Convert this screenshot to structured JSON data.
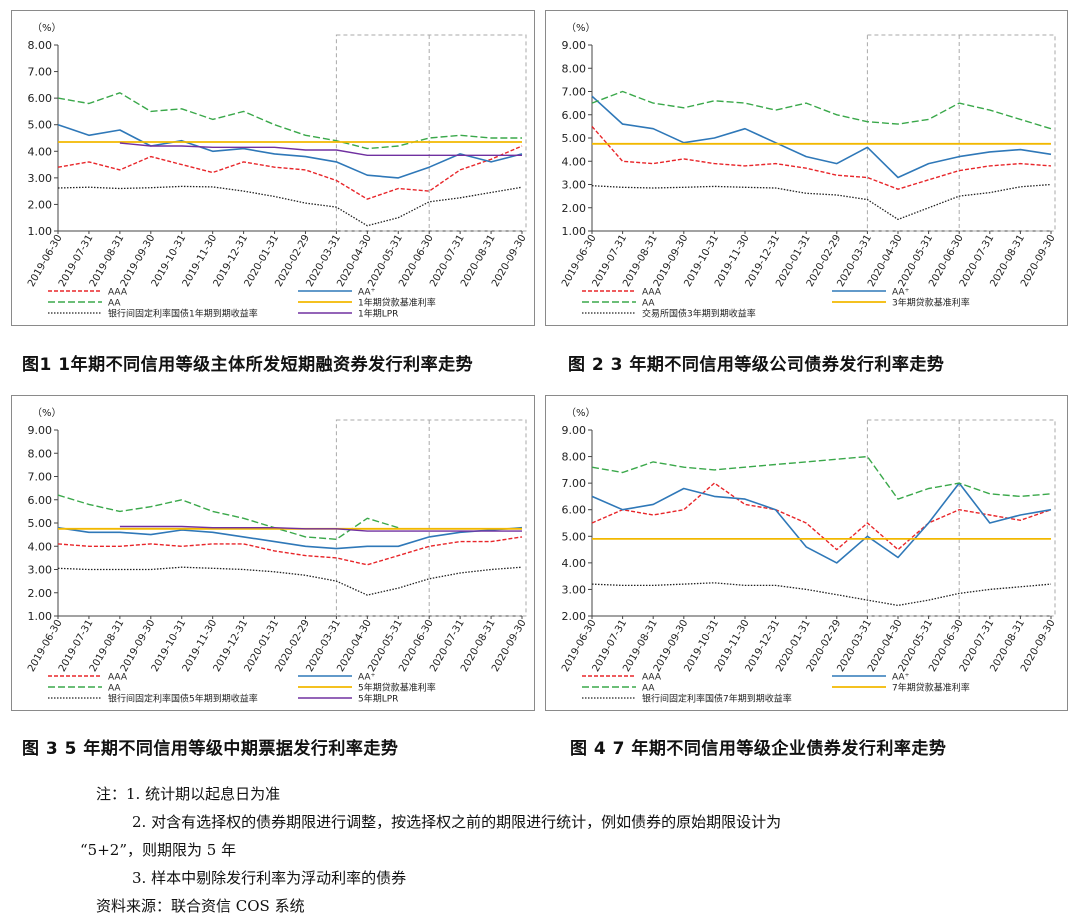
{
  "x_ticks": [
    "2019-06-30",
    "2019-07-31",
    "2019-08-31",
    "2019-09-30",
    "2019-10-31",
    "2019-11-30",
    "2019-12-31",
    "2020-01-31",
    "2020-02-29",
    "2020-03-31",
    "2020-04-30",
    "2020-05-31",
    "2020-06-30",
    "2020-07-31",
    "2020-08-31",
    "2020-09-30"
  ],
  "colors": {
    "aaa": "#e8262a",
    "aa_plus": "#2f78b8",
    "aa": "#3aa84a",
    "base": "#f2b800",
    "lpr": "#7030a0",
    "gov": "#222222"
  },
  "chart_data": [
    {
      "type": "line",
      "caption": "图1  1年期不同信用等级主体所发短期融资券发行利率走势",
      "unit": "（%）",
      "ylim": [
        1.0,
        8.0
      ],
      "y_ticks": [
        "8.00",
        "7.00",
        "6.00",
        "5.00",
        "4.00",
        "3.00",
        "2.00",
        "1.00"
      ],
      "grid": false,
      "legend": "bottom",
      "series": [
        {
          "name": "AAA",
          "values": [
            3.4,
            3.6,
            3.3,
            3.8,
            3.5,
            3.2,
            3.6,
            3.4,
            3.3,
            2.9,
            2.2,
            2.6,
            2.5,
            3.3,
            3.7,
            4.2
          ]
        },
        {
          "name": "AA⁺",
          "values": [
            5.0,
            4.6,
            4.8,
            4.2,
            4.4,
            4.0,
            4.1,
            3.9,
            3.8,
            3.6,
            3.1,
            3.0,
            3.4,
            3.9,
            3.6,
            3.9
          ]
        },
        {
          "name": "AA",
          "values": [
            6.0,
            5.8,
            6.2,
            5.5,
            5.6,
            5.2,
            5.5,
            5.0,
            4.6,
            4.4,
            4.1,
            4.2,
            4.5,
            4.6,
            4.5,
            4.5
          ]
        },
        {
          "name": "1年期贷款基准利率",
          "values": [
            4.35,
            4.35,
            4.35,
            4.35,
            4.35,
            4.35,
            4.35,
            4.35,
            4.35,
            4.35,
            4.35,
            4.35,
            4.35,
            4.35,
            4.35,
            4.35
          ]
        },
        {
          "name": "银行间固定利率国债1年期到期收益率",
          "values": [
            2.62,
            2.65,
            2.6,
            2.63,
            2.68,
            2.66,
            2.5,
            2.3,
            2.05,
            1.9,
            1.2,
            1.5,
            2.1,
            2.25,
            2.45,
            2.65
          ]
        },
        {
          "name": "1年期LPR",
          "values": [
            null,
            null,
            4.31,
            4.2,
            4.2,
            4.15,
            4.15,
            4.15,
            4.05,
            4.05,
            3.85,
            3.85,
            3.85,
            3.85,
            3.85,
            3.85
          ]
        }
      ]
    },
    {
      "type": "line",
      "caption": "图 2   3 年期不同信用等级公司债券发行利率走势",
      "unit": "（%）",
      "ylim": [
        1.0,
        9.0
      ],
      "y_ticks": [
        "9.00",
        "8.00",
        "7.00",
        "6.00",
        "5.00",
        "4.00",
        "3.00",
        "2.00",
        "1.00"
      ],
      "grid": false,
      "legend": "bottom",
      "series": [
        {
          "name": "AAA",
          "values": [
            5.5,
            4.0,
            3.9,
            4.1,
            3.9,
            3.8,
            3.9,
            3.7,
            3.4,
            3.3,
            2.8,
            3.2,
            3.6,
            3.8,
            3.9,
            3.8
          ]
        },
        {
          "name": "AA⁺",
          "values": [
            6.8,
            5.6,
            5.4,
            4.8,
            5.0,
            5.4,
            4.8,
            4.2,
            3.9,
            4.6,
            3.3,
            3.9,
            4.2,
            4.4,
            4.5,
            4.3
          ]
        },
        {
          "name": "AA",
          "values": [
            6.5,
            7.0,
            6.5,
            6.3,
            6.6,
            6.5,
            6.2,
            6.5,
            6.0,
            5.7,
            5.6,
            5.8,
            6.5,
            6.2,
            5.8,
            5.4
          ]
        },
        {
          "name": "3年期贷款基准利率",
          "values": [
            4.75,
            4.75,
            4.75,
            4.75,
            4.75,
            4.75,
            4.75,
            4.75,
            4.75,
            4.75,
            4.75,
            4.75,
            4.75,
            4.75,
            4.75,
            4.75
          ]
        },
        {
          "name": "交易所国债3年期到期收益率",
          "values": [
            2.95,
            2.88,
            2.85,
            2.88,
            2.92,
            2.88,
            2.85,
            2.62,
            2.55,
            2.35,
            1.5,
            2.0,
            2.5,
            2.65,
            2.9,
            3.0
          ]
        }
      ]
    },
    {
      "type": "line",
      "caption": "图 3   5 年期不同信用等级中期票据发行利率走势",
      "unit": "（%）",
      "ylim": [
        1.0,
        9.0
      ],
      "y_ticks": [
        "9.00",
        "8.00",
        "7.00",
        "6.00",
        "5.00",
        "4.00",
        "3.00",
        "2.00",
        "1.00"
      ],
      "grid": false,
      "legend": "bottom",
      "series": [
        {
          "name": "AAA",
          "values": [
            4.1,
            4.0,
            4.0,
            4.1,
            4.0,
            4.1,
            4.1,
            3.8,
            3.6,
            3.5,
            3.2,
            3.6,
            4.0,
            4.2,
            4.2,
            4.4
          ]
        },
        {
          "name": "AA⁺",
          "values": [
            4.8,
            4.6,
            4.6,
            4.5,
            4.7,
            4.6,
            4.4,
            4.2,
            4.0,
            3.9,
            4.0,
            4.0,
            4.4,
            4.6,
            4.7,
            4.8
          ]
        },
        {
          "name": "AA",
          "values": [
            6.2,
            5.8,
            5.5,
            5.7,
            6.0,
            5.5,
            5.2,
            4.8,
            4.4,
            4.3,
            5.2,
            4.8,
            null,
            null,
            null,
            null
          ]
        },
        {
          "name": "5年期贷款基准利率",
          "values": [
            4.75,
            4.75,
            4.75,
            4.75,
            4.75,
            4.75,
            4.75,
            4.75,
            4.75,
            4.75,
            4.75,
            4.75,
            4.75,
            4.75,
            4.75,
            4.75
          ]
        },
        {
          "name": "银行间固定利率国债5年期到期收益率",
          "values": [
            3.05,
            3.0,
            3.0,
            3.0,
            3.1,
            3.05,
            3.0,
            2.9,
            2.75,
            2.5,
            1.9,
            2.2,
            2.6,
            2.85,
            3.0,
            3.1
          ]
        },
        {
          "name": "5年期LPR",
          "values": [
            null,
            null,
            4.85,
            4.85,
            4.85,
            4.8,
            4.8,
            4.8,
            4.75,
            4.75,
            4.65,
            4.65,
            4.65,
            4.65,
            4.65,
            4.65
          ]
        }
      ]
    },
    {
      "type": "line",
      "caption": "图 4   7 年期不同信用等级企业债券发行利率走势",
      "unit": "（%）",
      "ylim": [
        2.0,
        9.0
      ],
      "y_ticks": [
        "9.00",
        "8.00",
        "7.00",
        "6.00",
        "5.00",
        "4.00",
        "3.00",
        "2.00"
      ],
      "grid": false,
      "legend": "bottom",
      "series": [
        {
          "name": "AAA",
          "values": [
            5.5,
            6.0,
            5.8,
            6.0,
            7.0,
            6.2,
            6.0,
            5.5,
            4.5,
            5.5,
            4.5,
            5.5,
            6.0,
            5.8,
            5.6,
            6.0
          ]
        },
        {
          "name": "AA⁺",
          "values": [
            6.5,
            6.0,
            6.2,
            6.8,
            6.5,
            6.4,
            6.0,
            4.6,
            4.0,
            5.0,
            4.2,
            5.5,
            7.0,
            5.5,
            5.8,
            6.0
          ]
        },
        {
          "name": "AA",
          "values": [
            7.6,
            7.4,
            7.8,
            7.6,
            7.5,
            7.6,
            7.7,
            7.8,
            7.9,
            8.0,
            6.4,
            6.8,
            7.0,
            6.6,
            6.5,
            6.6
          ]
        },
        {
          "name": "7年期贷款基准利率",
          "values": [
            4.9,
            4.9,
            4.9,
            4.9,
            4.9,
            4.9,
            4.9,
            4.9,
            4.9,
            4.9,
            4.9,
            4.9,
            4.9,
            4.9,
            4.9,
            4.9
          ]
        },
        {
          "name": "银行间固定利率国债7年期到期收益率",
          "values": [
            3.2,
            3.15,
            3.15,
            3.2,
            3.25,
            3.15,
            3.15,
            3.0,
            2.8,
            2.6,
            2.4,
            2.6,
            2.85,
            3.0,
            3.1,
            3.2
          ]
        }
      ]
    }
  ],
  "notes": {
    "line1": "注：1. 统计期以起息日为准",
    "line2": "2. 对含有选择权的债券期限进行调整，按选择权之前的期限进行统计，例如债券的原始期限设计为",
    "line3": "“5+2”，则期限为 5 年",
    "line4": "3. 样本中剔除发行利率为浮动利率的债券",
    "line5": "资料来源：联合资信 COS 系统"
  }
}
